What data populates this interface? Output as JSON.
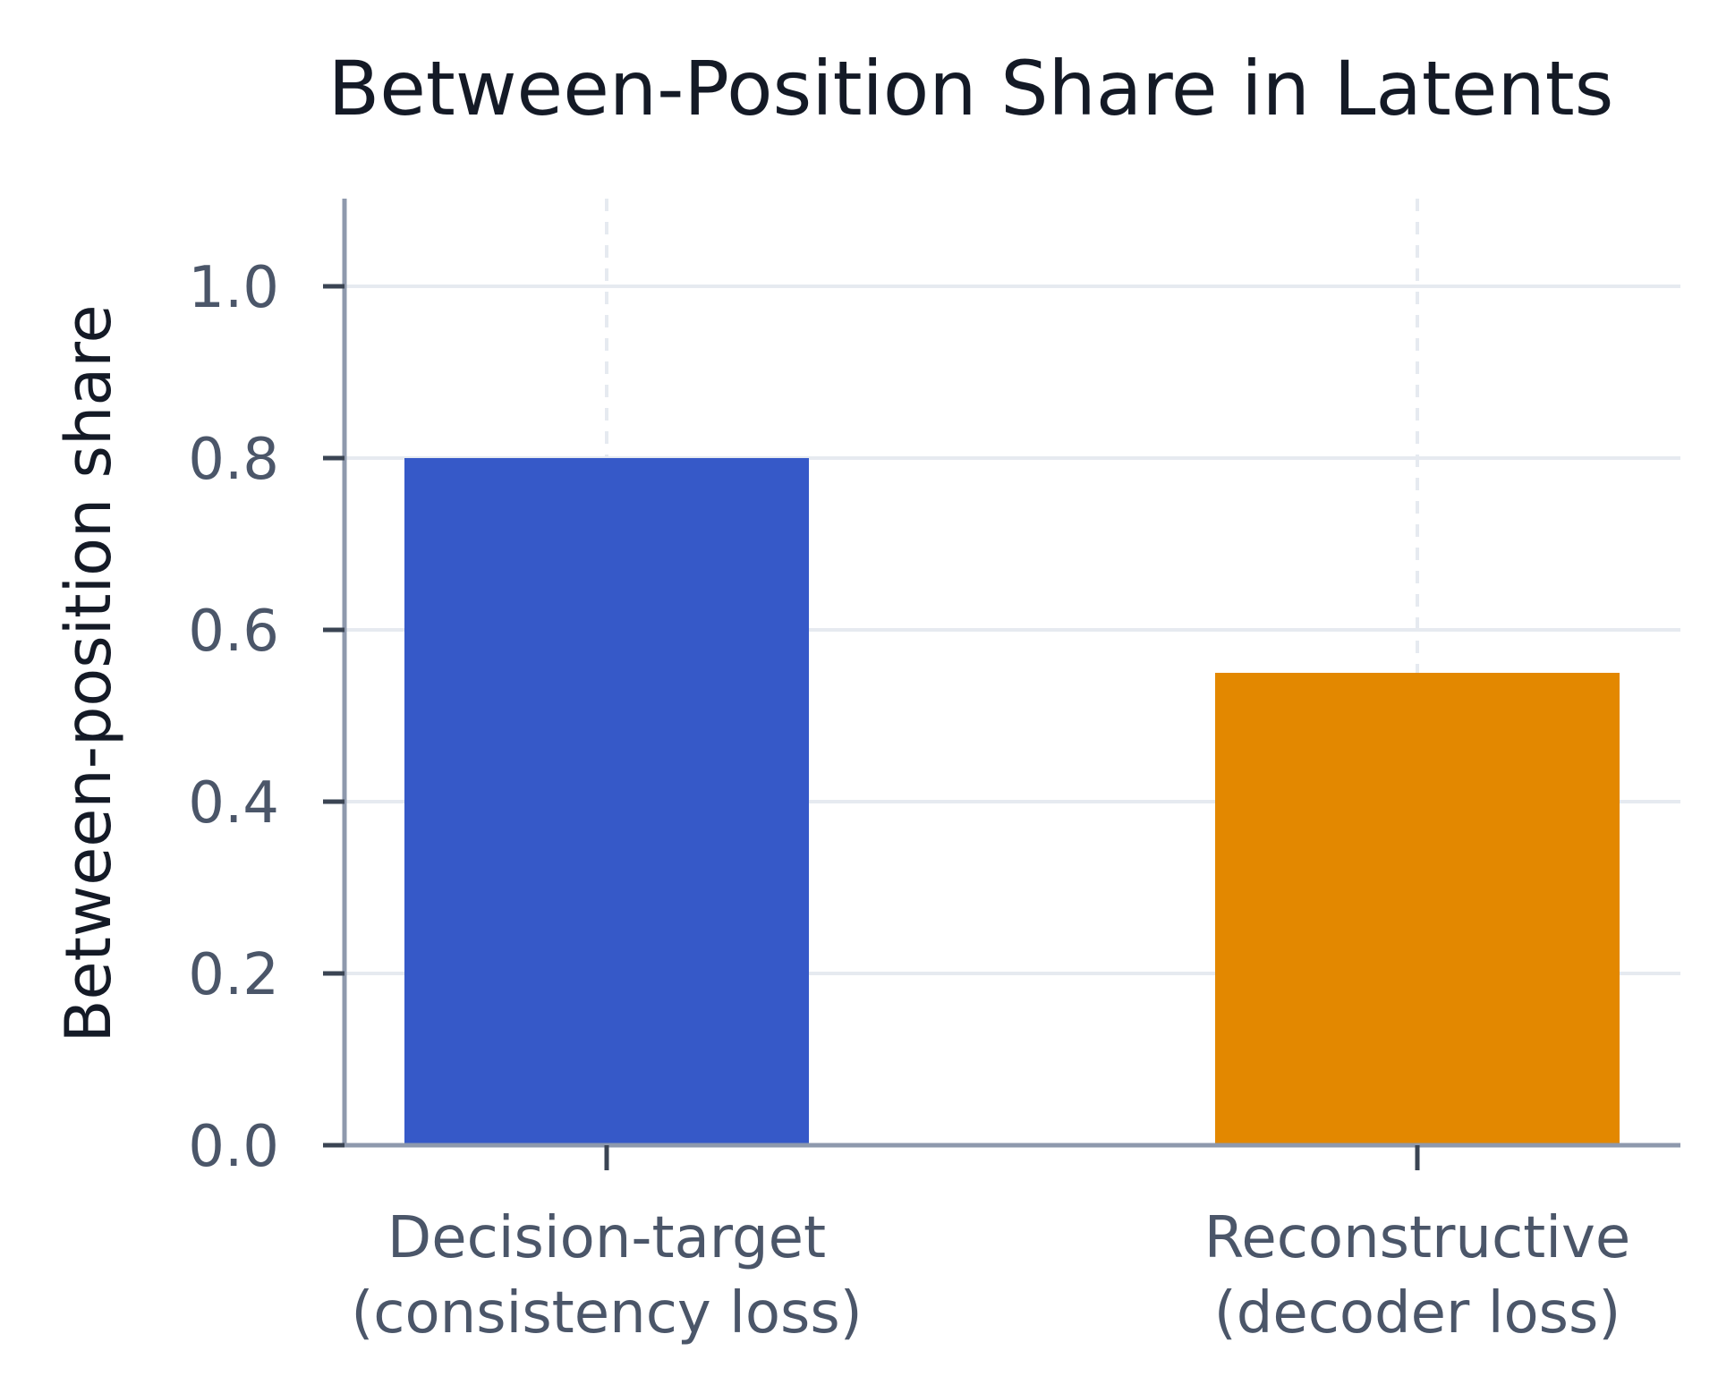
{
  "chart_data": {
    "type": "bar",
    "title": "Between-Position Share in Latents",
    "xlabel": "",
    "ylabel": "Between-position share",
    "categories": [
      [
        "Decision-target",
        "(consistency loss)"
      ],
      [
        "Reconstructive",
        "(decoder loss)"
      ]
    ],
    "values": [
      0.8,
      0.55
    ],
    "bar_colors": [
      "#3659c8",
      "#e38800"
    ],
    "ylim": [
      0,
      1.1
    ],
    "yticks": [
      0.0,
      0.2,
      0.4,
      0.6,
      0.8,
      1.0
    ],
    "ytick_labels": [
      "0.0",
      "0.2",
      "0.4",
      "0.6",
      "0.8",
      "1.0"
    ],
    "grid": {
      "horizontal": true,
      "vertical_dashed": true
    },
    "colors": {
      "grid": "#e6eaf0",
      "axis": "#8e99ad",
      "tick": "#3a4453",
      "text": "#4b5669",
      "title": "#141a26"
    }
  }
}
